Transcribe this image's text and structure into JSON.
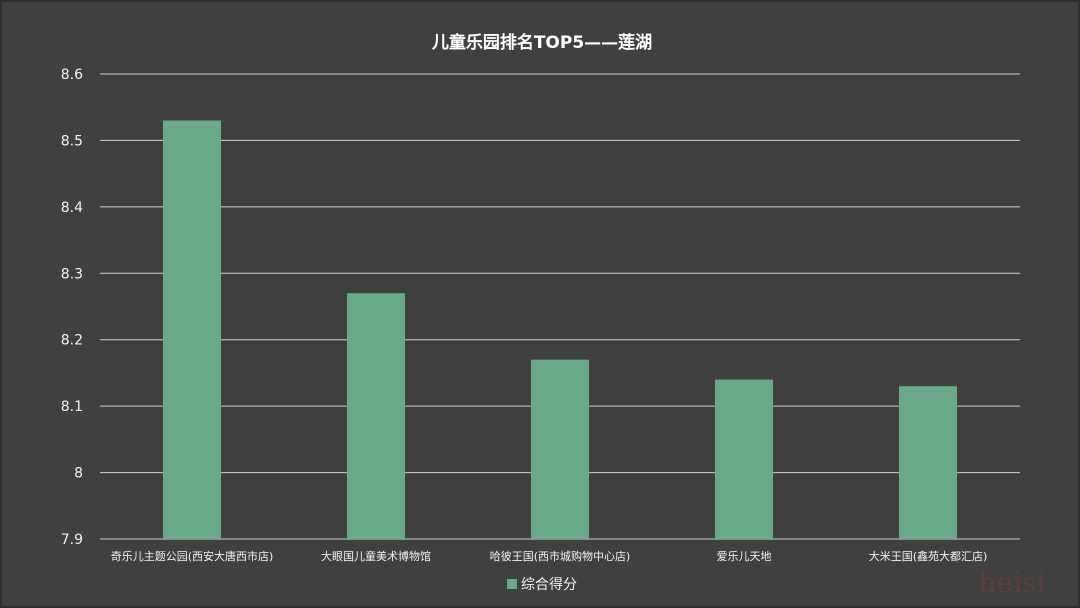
{
  "chart_data": {
    "type": "bar",
    "title": "儿童乐园排名TOP5——莲湖",
    "categories": [
      "奇乐儿主题公园(西安大唐西市店)",
      "大眼国儿童美术博物馆",
      "哈彼王国(西市城购物中心店)",
      "爱乐儿天地",
      "大米王国(鑫苑大都汇店)"
    ],
    "series": [
      {
        "name": "综合得分",
        "color": "#6aaa88",
        "values": [
          8.53,
          8.27,
          8.17,
          8.14,
          8.13
        ]
      }
    ],
    "ylim": [
      7.9,
      8.6
    ],
    "yticks": [
      "7.9",
      "8",
      "8.1",
      "8.2",
      "8.3",
      "8.4",
      "8.5",
      "8.6"
    ],
    "xlabel": "",
    "ylabel": "",
    "grid": true,
    "legend_position": "bottom"
  },
  "watermark": "heisi"
}
